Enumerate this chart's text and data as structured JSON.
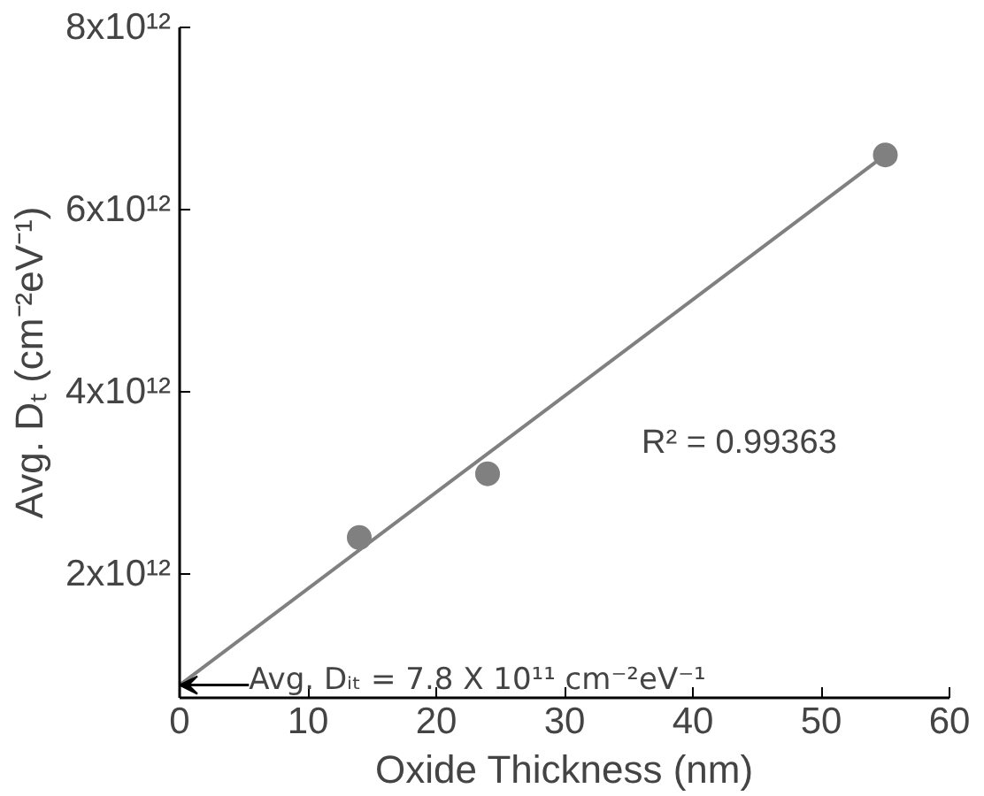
{
  "chart_data": {
    "type": "scatter",
    "xlabel": "Oxide Thickness (nm)",
    "ylabel": "Avg. Dₜ (cm⁻²eV⁻¹)",
    "x": [
      14,
      24,
      55
    ],
    "series": [
      {
        "color": "#808080",
        "values": [
          2400000000000.0,
          3100000000000.0,
          6600000000000.0
        ],
        "marker": "circle"
      },
      {
        "type": "line",
        "color": "#808080",
        "x": [
          0,
          55
        ],
        "values": [
          780000000000.0,
          6600000000000.0
        ],
        "line_style": "solid"
      }
    ],
    "xlim": [
      0,
      60
    ],
    "xticks": [
      0,
      10,
      20,
      30,
      40,
      50,
      60
    ],
    "ylim": [
      640000000000.0,
      8000000000000.0
    ],
    "yticks": [
      {
        "value": 2000000000000.0,
        "label": "2x10¹²"
      },
      {
        "value": 4000000000000.0,
        "label": "4x10¹²"
      },
      {
        "value": 6000000000000.0,
        "label": "6x10¹²"
      },
      {
        "value": 8000000000000.0,
        "label": "8x10¹²"
      }
    ],
    "annotations": [
      {
        "text": "Avg. Dᵢₜ = 7.8 X 10¹¹ cm⁻²eV⁻¹",
        "x": 0,
        "y": 780000000000.0
      },
      "R² = 0.99363"
    ],
    "grid": false
  }
}
